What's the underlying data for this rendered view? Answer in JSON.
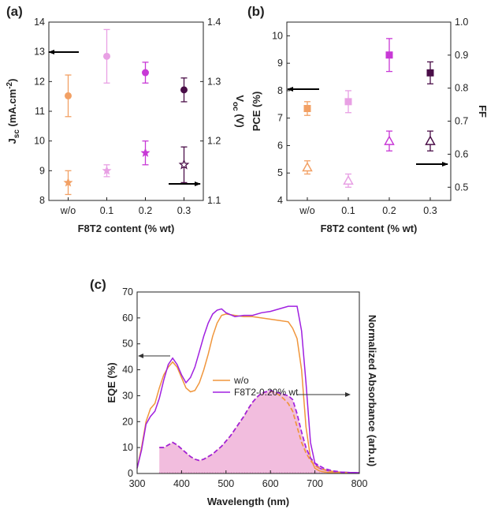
{
  "chart_data": [
    {
      "panel": "(a)",
      "type": "scatter",
      "xlabel": "F8T2 content (% wt)",
      "categories": [
        "w/o",
        "0.1",
        "0.2",
        "0.3"
      ],
      "left_axis": {
        "label": "J_sc (mA.cm-2)",
        "label_main": "J",
        "label_sub": "sc",
        "label_unit": " (mA.cm",
        "label_sup": "-2",
        "label_close": ")",
        "ylim": [
          8,
          14
        ],
        "ticks": [
          8,
          9,
          10,
          11,
          12,
          13,
          14
        ],
        "tick_labels": [
          "8",
          "9",
          "10",
          "11",
          "12",
          "13",
          "14"
        ]
      },
      "right_axis": {
        "label": "V_oc (V)",
        "label_main": "V",
        "label_sub": "oc",
        "label_unit": " (V)",
        "ylim": [
          1.1,
          1.4
        ],
        "ticks": [
          1.1,
          1.2,
          1.3,
          1.4
        ],
        "tick_labels": [
          "1.1",
          "1.2",
          "1.3",
          "1.4"
        ]
      },
      "series": [
        {
          "name": "Jsc",
          "axis": "left",
          "marker": "circle",
          "values": [
            11.52,
            12.85,
            12.3,
            11.72
          ],
          "errors": [
            0.7,
            0.9,
            0.35,
            0.4
          ]
        },
        {
          "name": "Voc",
          "axis": "right",
          "marker": "star",
          "values": [
            1.13,
            1.15,
            1.18,
            1.16
          ],
          "errors": [
            0.02,
            0.01,
            0.02,
            0.03
          ]
        }
      ],
      "colors": [
        "#f2a064",
        "#e8a0e4",
        "#c839d6",
        "#4a0e48"
      ]
    },
    {
      "panel": "(b)",
      "type": "scatter",
      "xlabel": "F8T2 content (% wt)",
      "categories": [
        "w/o",
        "0.1",
        "0.2",
        "0.3"
      ],
      "left_axis": {
        "label": "PCE (%)",
        "ylim": [
          4,
          10.5
        ],
        "ticks": [
          4,
          5,
          6,
          7,
          8,
          9,
          10
        ],
        "tick_labels": [
          "4",
          "5",
          "6",
          "7",
          "8",
          "9",
          "10"
        ]
      },
      "right_axis": {
        "label": "FF",
        "ylim": [
          0.46,
          1.0
        ],
        "ticks": [
          0.5,
          0.6,
          0.7,
          0.8,
          0.9,
          1.0
        ],
        "tick_labels": [
          "0.5",
          "0.6",
          "0.7",
          "0.8",
          "0.9",
          "1.0"
        ]
      },
      "series": [
        {
          "name": "PCE",
          "axis": "left",
          "marker": "square",
          "values": [
            7.35,
            7.6,
            9.3,
            8.65
          ],
          "errors": [
            0.25,
            0.4,
            0.6,
            0.4
          ]
        },
        {
          "name": "FF",
          "axis": "right",
          "marker": "triangle",
          "values": [
            0.56,
            0.52,
            0.64,
            0.64
          ],
          "errors": [
            0.02,
            0.02,
            0.03,
            0.03
          ]
        }
      ],
      "colors": [
        "#f2a064",
        "#e8a0e4",
        "#c839d6",
        "#4a0e48"
      ]
    },
    {
      "panel": "(c)",
      "type": "line",
      "xlabel": "Wavelength (nm)",
      "ylabel": "EQE (%)",
      "ylabel_right": "Normalized Absorbance (arb.u)",
      "xlim": [
        300,
        800
      ],
      "ylim": [
        0,
        70
      ],
      "xticks": [
        300,
        400,
        500,
        600,
        700,
        800
      ],
      "yticks": [
        0,
        10,
        20,
        30,
        40,
        50,
        60,
        70
      ],
      "legend": [
        "w/o",
        "F8T2-0.20% wt"
      ],
      "series": [
        {
          "name": "w/o",
          "color": "#f0963c",
          "x": [
            300,
            310,
            320,
            330,
            340,
            350,
            360,
            370,
            380,
            390,
            400,
            410,
            420,
            430,
            440,
            450,
            460,
            470,
            480,
            490,
            500,
            520,
            540,
            560,
            580,
            600,
            620,
            640,
            650,
            660,
            670,
            680,
            690,
            700,
            710,
            720,
            730,
            740,
            750,
            760,
            770,
            780,
            790,
            800
          ],
          "y": [
            2,
            10,
            20,
            25,
            27,
            33,
            38,
            41,
            43,
            41,
            37,
            33,
            31.5,
            32,
            35,
            40,
            46,
            53,
            58,
            61,
            61.5,
            61,
            60.5,
            60.5,
            60,
            59.5,
            59,
            58.5,
            56,
            52,
            40,
            18,
            6,
            2,
            1,
            0.6,
            0.4,
            0.3,
            0.3,
            0.3,
            0.3,
            0.3,
            0.3,
            0.3
          ]
        },
        {
          "name": "F8T2-0.20% wt",
          "color": "#a020e0",
          "x": [
            300,
            310,
            320,
            330,
            340,
            350,
            360,
            370,
            380,
            390,
            400,
            410,
            420,
            430,
            440,
            450,
            460,
            470,
            480,
            490,
            500,
            520,
            540,
            560,
            580,
            600,
            620,
            640,
            650,
            660,
            670,
            680,
            690,
            700,
            710,
            720,
            730,
            740,
            750,
            760,
            770,
            780,
            790,
            800
          ],
          "y": [
            2,
            9,
            19,
            22,
            24,
            29,
            36,
            42,
            44.5,
            42,
            38,
            35,
            37,
            41,
            47,
            53,
            58,
            61.5,
            63,
            63.5,
            62,
            60.5,
            61,
            61,
            62,
            62.5,
            63.5,
            64.5,
            64.5,
            64.5,
            55,
            35,
            12,
            4,
            2,
            1.5,
            1,
            0.8,
            0.6,
            0.5,
            0.5,
            0.4,
            0.4,
            0.3
          ]
        },
        {
          "name": "Absorbance (w/o)",
          "color": "#f0963c",
          "style": "dashed",
          "axis": "right",
          "x": [
            350,
            360,
            370,
            380,
            390,
            400,
            410,
            420,
            430,
            440,
            450,
            460,
            470,
            480,
            490,
            500,
            510,
            520,
            530,
            540,
            550,
            560,
            570,
            580,
            590,
            600,
            610,
            620,
            630,
            640,
            650,
            660,
            670,
            680,
            690,
            700,
            710,
            720,
            730,
            740,
            750,
            760,
            770,
            780
          ],
          "y": [
            10,
            10,
            11,
            12,
            11,
            9.5,
            8,
            6.5,
            5.5,
            5,
            5.5,
            6.5,
            7.5,
            9,
            10.5,
            12.5,
            14.5,
            17,
            19.5,
            22,
            25,
            27.5,
            29.5,
            31,
            31.5,
            31.8,
            31.3,
            30.2,
            28.8,
            27,
            24,
            18,
            12,
            8,
            5,
            3,
            2,
            1.5,
            1,
            0.8,
            0.5,
            0.4,
            0.3,
            0.2
          ]
        },
        {
          "name": "Absorbance (F8T2-0.20% wt)",
          "color": "#a020e0",
          "style": "dashed",
          "axis": "right",
          "x": [
            350,
            360,
            370,
            380,
            390,
            400,
            410,
            420,
            430,
            440,
            450,
            460,
            470,
            480,
            490,
            500,
            510,
            520,
            530,
            540,
            550,
            560,
            570,
            580,
            590,
            600,
            610,
            620,
            630,
            640,
            650,
            660,
            670,
            680,
            690,
            700,
            710,
            720,
            730,
            740,
            750,
            760,
            770,
            780
          ],
          "y": [
            10,
            10,
            11,
            12,
            11,
            9.5,
            8,
            6.5,
            5.5,
            5,
            5.5,
            6.5,
            7.5,
            9,
            10.5,
            12.5,
            14.5,
            17,
            19.5,
            22,
            25,
            27.5,
            29.5,
            31,
            31.5,
            32,
            31.5,
            31,
            30.5,
            30,
            28.5,
            23,
            16,
            10,
            6,
            4,
            3,
            2,
            1.5,
            1,
            0.8,
            0.5,
            0.4,
            0.3
          ]
        }
      ]
    }
  ]
}
